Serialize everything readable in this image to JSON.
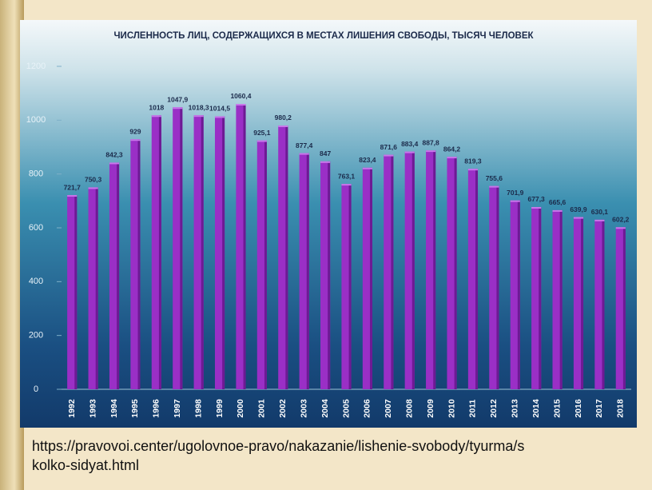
{
  "chart_data": {
    "type": "bar",
    "title": "ЧИСЛЕННОСТЬ ЛИЦ, СОДЕРЖАЩИХСЯ В МЕСТАХ ЛИШЕНИЯ СВОБОДЫ, ТЫСЯЧ ЧЕЛОВЕК",
    "categories": [
      "1992",
      "1993",
      "1994",
      "1995",
      "1996",
      "1997",
      "1998",
      "1999",
      "2000",
      "2001",
      "2002",
      "2003",
      "2004",
      "2005",
      "2006",
      "2007",
      "2008",
      "2009",
      "2010",
      "2011",
      "2012",
      "2013",
      "2014",
      "2015",
      "2016",
      "2017",
      "2018"
    ],
    "values": [
      721.7,
      750.3,
      842.3,
      929,
      1018,
      1047.9,
      1018.3,
      1014.5,
      1060.4,
      925.1,
      980.2,
      877.4,
      847,
      763.1,
      823.4,
      871.6,
      883.4,
      887.8,
      864.2,
      819.3,
      755.6,
      701.9,
      677.3,
      665.6,
      639.9,
      630.1,
      602.2
    ],
    "value_labels": [
      "721,7",
      "750,3",
      "842,3",
      "929",
      "1018",
      "1047,9",
      "1018,3",
      "1014,5",
      "1060,4",
      "925,1",
      "980,2",
      "877,4",
      "847",
      "763,1",
      "823,4",
      "871,6",
      "883,4",
      "887,8",
      "864,2",
      "819,3",
      "755,6",
      "701,9",
      "677,3",
      "665,6",
      "639,9",
      "630,1",
      "602,2"
    ],
    "color": "#9a2fc6",
    "ylim": [
      0,
      1200
    ],
    "yticks": [
      0,
      200,
      400,
      600,
      800,
      1000,
      1200
    ],
    "grid": false
  },
  "source": "https://pravovoi.center/ugolovnoe-pravo/nakazanie/lishenie-svobody/tyurma/skolko-sidyat.html"
}
